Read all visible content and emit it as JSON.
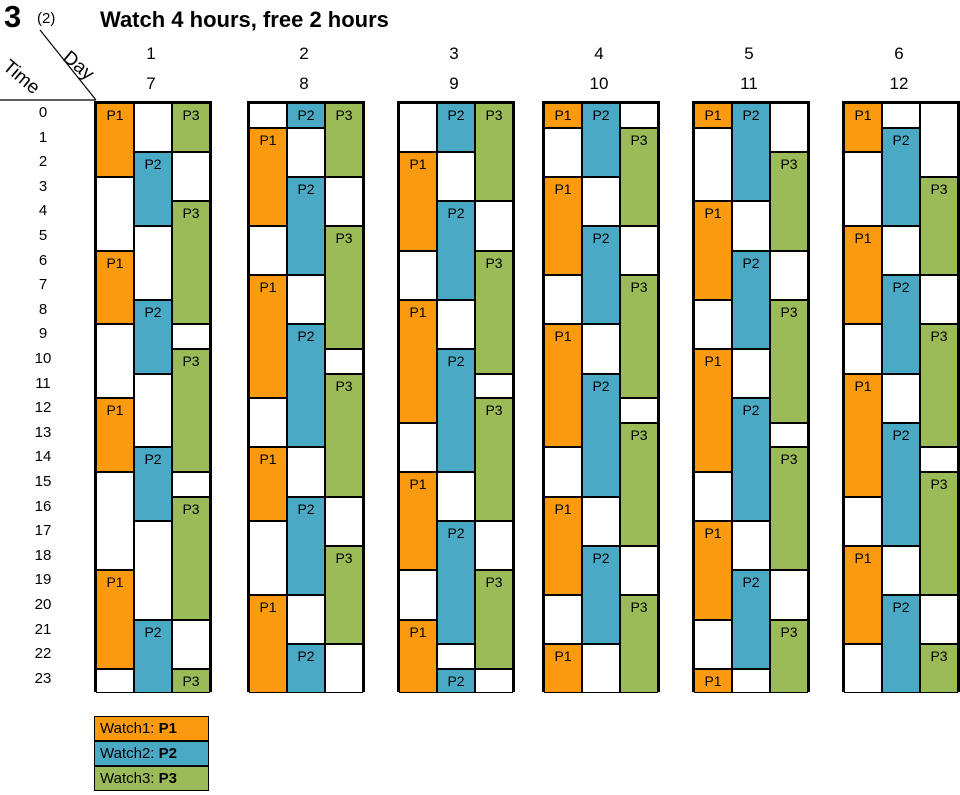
{
  "title": {
    "number": "3",
    "sub": "(2)",
    "text": "Watch 4 hours, free 2 hours"
  },
  "header": {
    "time_label": "Time",
    "day_label": "Day"
  },
  "days_top": [
    "1",
    "2",
    "3",
    "4",
    "5",
    "6"
  ],
  "days_bottom": [
    "7",
    "8",
    "9",
    "10",
    "11",
    "12"
  ],
  "hours": [
    "0",
    "1",
    "2",
    "3",
    "4",
    "5",
    "6",
    "7",
    "8",
    "9",
    "10",
    "11",
    "12",
    "13",
    "14",
    "15",
    "16",
    "17",
    "18",
    "19",
    "20",
    "21",
    "22",
    "23"
  ],
  "colors": {
    "P1": "#fb9a0e",
    "P2": "#4aaac6",
    "P3": "#9bbb59"
  },
  "watches": [
    {
      "label": "P1",
      "col": 0,
      "start": [
        0,
        6,
        7,
        7,
        6,
        0
      ],
      "count": [
        6,
        7,
        8,
        8,
        8,
        8,
        8,
        8,
        7
      ]
    },
    {
      "label": "P2",
      "col": 1,
      "start": [
        2,
        0,
        0,
        0,
        0,
        1
      ]
    },
    {
      "label": "P3",
      "col": 2,
      "start": [
        0,
        0,
        0,
        1,
        2,
        3
      ]
    }
  ],
  "legend": [
    {
      "prefix": "Watch1:",
      "label": "P1",
      "color": "#fb9a0e"
    },
    {
      "prefix": "Watch2:",
      "label": "P2",
      "color": "#4aaac6"
    },
    {
      "prefix": "Watch3:",
      "label": "P3",
      "color": "#9bbb59"
    }
  ]
}
